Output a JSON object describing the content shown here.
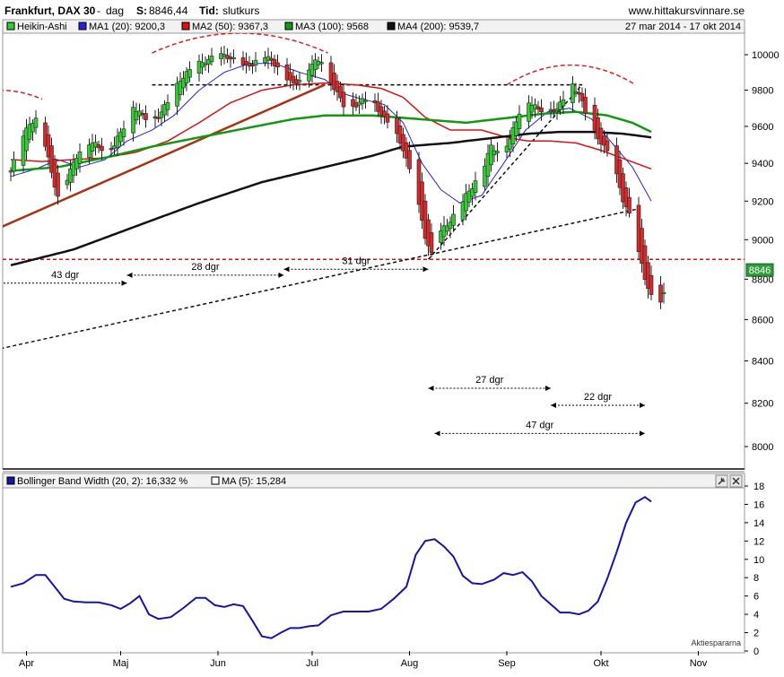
{
  "header": {
    "title": "Frankfurt, DAX 30",
    "sep": "-",
    "period": "dag",
    "price_label": "S:",
    "price": "8846,44",
    "time_label": "Tid:",
    "time_value": "slutkurs",
    "site": "www.hittakursvinnare.se",
    "date_range": "27 mar 2014 - 17 okt 2014"
  },
  "legend": [
    {
      "label": "Heikin-Ashi",
      "color": "#33cc33"
    },
    {
      "label": "MA1 (20): 9200,3",
      "color": "#2222dd"
    },
    {
      "label": "MA2 (50): 9367,3",
      "color": "#dd1111"
    },
    {
      "label": "MA3 (100): 9568",
      "color": "#119911"
    },
    {
      "label": "MA4 (200): 9539,7",
      "color": "#111111"
    }
  ],
  "lower_legend": {
    "bbw": "Bollinger Band Width (20, 2): 16,332  %",
    "bbw_color": "#1515aa",
    "ma": "MA (5): 15,284",
    "ma_color": "#ffffff"
  },
  "price_tag": "8846",
  "watermark": "Aktiespararna",
  "annotations": [
    {
      "text": "43 dgr",
      "x": 0,
      "x1": -13,
      "x2": 37,
      "y": 8780
    },
    {
      "text": "28 dgr",
      "x": 0,
      "x1": 37,
      "x2": 87,
      "y": 8820
    },
    {
      "text": "31 dgr",
      "x": 0,
      "x1": 87,
      "x2": 133,
      "y": 8850
    },
    {
      "text": "27 dgr",
      "x": 0,
      "x1": 133,
      "x2": 172,
      "y": 8270
    },
    {
      "text": "22 dgr",
      "x": 0,
      "x1": 172,
      "x2": 202,
      "y": 8190
    },
    {
      "text": "47 dgr",
      "x": 0,
      "x1": 135,
      "x2": 202,
      "y": 8060
    }
  ],
  "chart_data": [
    {
      "type": "candlestick",
      "candle_style": "Heikin-Ashi",
      "x_unit": "days since 2014-03-27",
      "x_ticks": [
        {
          "label": "Apr",
          "x": 5
        },
        {
          "label": "Maj",
          "x": 35
        },
        {
          "label": "Jun",
          "x": 66
        },
        {
          "label": "Jul",
          "x": 96
        },
        {
          "label": "Aug",
          "x": 127
        },
        {
          "label": "Sep",
          "x": 158
        },
        {
          "label": "Okt",
          "x": 188
        },
        {
          "label": "Nov",
          "x": 219
        }
      ],
      "ylim": [
        7880,
        10160
      ],
      "y_ticks": [
        8000,
        8200,
        8400,
        8600,
        8800,
        9000,
        9200,
        9400,
        9600,
        9800,
        10000
      ],
      "y_scale": "log",
      "grid": false,
      "anchors": [
        [
          0,
          9360
        ],
        [
          3,
          9500
        ],
        [
          6,
          9620
        ],
        [
          9,
          9640
        ],
        [
          12,
          9420
        ],
        [
          15,
          9220
        ],
        [
          18,
          9320
        ],
        [
          21,
          9440
        ],
        [
          24,
          9520
        ],
        [
          27,
          9500
        ],
        [
          30,
          9470
        ],
        [
          33,
          9500
        ],
        [
          36,
          9600
        ],
        [
          39,
          9710
        ],
        [
          42,
          9660
        ],
        [
          45,
          9620
        ],
        [
          48,
          9680
        ],
        [
          51,
          9760
        ],
        [
          54,
          9860
        ],
        [
          57,
          9910
        ],
        [
          60,
          9950
        ],
        [
          63,
          9970
        ],
        [
          66,
          10000
        ],
        [
          69,
          9990
        ],
        [
          72,
          9960
        ],
        [
          75,
          9930
        ],
        [
          78,
          9960
        ],
        [
          81,
          9990
        ],
        [
          84,
          9950
        ],
        [
          87,
          9890
        ],
        [
          90,
          9830
        ],
        [
          93,
          9880
        ],
        [
          96,
          9950
        ],
        [
          99,
          9970
        ],
        [
          101,
          9880
        ],
        [
          104,
          9780
        ],
        [
          107,
          9690
        ],
        [
          110,
          9720
        ],
        [
          113,
          9750
        ],
        [
          116,
          9720
        ],
        [
          119,
          9640
        ],
        [
          122,
          9580
        ],
        [
          125,
          9480
        ],
        [
          128,
          9300
        ],
        [
          130,
          9170
        ],
        [
          132,
          9020
        ],
        [
          134,
          8920
        ],
        [
          136,
          9020
        ],
        [
          139,
          9080
        ],
        [
          141,
          9120
        ],
        [
          144,
          9200
        ],
        [
          147,
          9280
        ],
        [
          150,
          9350
        ],
        [
          153,
          9490
        ],
        [
          156,
          9460
        ],
        [
          159,
          9530
        ],
        [
          162,
          9680
        ],
        [
          165,
          9740
        ],
        [
          168,
          9690
        ],
        [
          171,
          9700
        ],
        [
          174,
          9690
        ],
        [
          177,
          9790
        ],
        [
          179,
          9830
        ],
        [
          181,
          9780
        ],
        [
          184,
          9620
        ],
        [
          187,
          9540
        ],
        [
          190,
          9460
        ],
        [
          193,
          9330
        ],
        [
          195,
          9210
        ],
        [
          198,
          9080
        ],
        [
          200,
          8930
        ],
        [
          202,
          8810
        ],
        [
          204,
          8710
        ],
        [
          206,
          8650
        ],
        [
          208,
          8720
        ]
      ],
      "series": [
        {
          "name": "MA1 (20)",
          "anchors": [
            [
              0,
              9330
            ],
            [
              8,
              9370
            ],
            [
              15,
              9420
            ],
            [
              22,
              9380
            ],
            [
              30,
              9420
            ],
            [
              37,
              9520
            ],
            [
              45,
              9580
            ],
            [
              52,
              9660
            ],
            [
              60,
              9800
            ],
            [
              68,
              9900
            ],
            [
              76,
              9950
            ],
            [
              84,
              9950
            ],
            [
              92,
              9900
            ],
            [
              100,
              9860
            ],
            [
              106,
              9780
            ],
            [
              112,
              9750
            ],
            [
              119,
              9720
            ],
            [
              125,
              9620
            ],
            [
              131,
              9400
            ],
            [
              137,
              9260
            ],
            [
              143,
              9190
            ],
            [
              150,
              9230
            ],
            [
              157,
              9400
            ],
            [
              164,
              9580
            ],
            [
              171,
              9680
            ],
            [
              178,
              9700
            ],
            [
              185,
              9640
            ],
            [
              192,
              9500
            ],
            [
              198,
              9380
            ],
            [
              204,
              9200
            ]
          ]
        },
        {
          "name": "MA2 (50)",
          "anchors": [
            [
              0,
              9420
            ],
            [
              10,
              9410
            ],
            [
              20,
              9420
            ],
            [
              30,
              9430
            ],
            [
              40,
              9460
            ],
            [
              50,
              9520
            ],
            [
              60,
              9620
            ],
            [
              70,
              9730
            ],
            [
              80,
              9800
            ],
            [
              90,
              9830
            ],
            [
              100,
              9840
            ],
            [
              110,
              9830
            ],
            [
              118,
              9810
            ],
            [
              125,
              9760
            ],
            [
              132,
              9650
            ],
            [
              140,
              9580
            ],
            [
              150,
              9580
            ],
            [
              158,
              9540
            ],
            [
              165,
              9520
            ],
            [
              172,
              9520
            ],
            [
              180,
              9510
            ],
            [
              188,
              9470
            ],
            [
              196,
              9420
            ],
            [
              204,
              9370
            ]
          ]
        },
        {
          "name": "MA3 (100)",
          "anchors": [
            [
              0,
              9360
            ],
            [
              15,
              9380
            ],
            [
              30,
              9430
            ],
            [
              45,
              9490
            ],
            [
              60,
              9540
            ],
            [
              75,
              9590
            ],
            [
              90,
              9640
            ],
            [
              100,
              9660
            ],
            [
              115,
              9660
            ],
            [
              130,
              9640
            ],
            [
              145,
              9620
            ],
            [
              160,
              9650
            ],
            [
              170,
              9670
            ],
            [
              180,
              9680
            ],
            [
              190,
              9660
            ],
            [
              198,
              9620
            ],
            [
              204,
              9570
            ]
          ]
        },
        {
          "name": "MA4 (200)",
          "anchors": [
            [
              0,
              8870
            ],
            [
              20,
              8950
            ],
            [
              40,
              9070
            ],
            [
              60,
              9190
            ],
            [
              80,
              9300
            ],
            [
              100,
              9380
            ],
            [
              115,
              9440
            ],
            [
              125,
              9490
            ],
            [
              140,
              9510
            ],
            [
              155,
              9540
            ],
            [
              165,
              9560
            ],
            [
              175,
              9570
            ],
            [
              185,
              9570
            ],
            [
              195,
              9560
            ],
            [
              204,
              9540
            ]
          ]
        }
      ],
      "levels": [
        9830,
        8900
      ],
      "trendlines": [
        {
          "from": [
            -15,
            8980
          ],
          "to": [
            100,
            9830
          ],
          "color": "#aa3311"
        },
        {
          "from": [
            -15,
            8420
          ],
          "to": [
            200,
            9160
          ],
          "color": "#111111"
        },
        {
          "from": [
            133,
            8900
          ],
          "to": [
            182,
            9830
          ],
          "color": "#111111"
        }
      ],
      "arcs": [
        [
          -17,
          10
        ],
        [
          45,
          101
        ],
        [
          158,
          199
        ]
      ]
    },
    {
      "type": "line",
      "title": "Bollinger Band Width (20, 2)",
      "ylim": [
        0,
        18.8
      ],
      "y_ticks": [
        0,
        2,
        4,
        6,
        8,
        10,
        12,
        14,
        16,
        18
      ],
      "series": [
        {
          "name": "BBW",
          "values": [
            [
              0,
              7
            ],
            [
              4,
              7.4
            ],
            [
              8,
              8.3
            ],
            [
              11,
              8.3
            ],
            [
              14,
              7
            ],
            [
              17,
              5.7
            ],
            [
              20,
              5.4
            ],
            [
              24,
              5.3
            ],
            [
              28,
              5.3
            ],
            [
              32,
              5
            ],
            [
              35,
              4.6
            ],
            [
              38,
              5.2
            ],
            [
              41,
              6
            ],
            [
              44,
              4
            ],
            [
              47,
              3.5
            ],
            [
              51,
              3.7
            ],
            [
              55,
              4.7
            ],
            [
              59,
              5.8
            ],
            [
              62,
              5.8
            ],
            [
              65,
              5
            ],
            [
              68,
              4.8
            ],
            [
              71,
              5.1
            ],
            [
              74,
              4.9
            ],
            [
              77,
              3.3
            ],
            [
              80,
              1.6
            ],
            [
              83,
              1.4
            ],
            [
              86,
              2
            ],
            [
              89,
              2.5
            ],
            [
              92,
              2.5
            ],
            [
              95,
              2.7
            ],
            [
              98,
              2.8
            ],
            [
              102,
              3.9
            ],
            [
              106,
              4.3
            ],
            [
              110,
              4.3
            ],
            [
              114,
              4.3
            ],
            [
              118,
              4.6
            ],
            [
              122,
              5.7
            ],
            [
              126,
              7
            ],
            [
              129,
              10.5
            ],
            [
              132,
              12
            ],
            [
              135,
              12.2
            ],
            [
              138,
              11.4
            ],
            [
              141,
              10.3
            ],
            [
              144,
              8.2
            ],
            [
              147,
              7.4
            ],
            [
              150,
              7.3
            ],
            [
              154,
              7.8
            ],
            [
              157,
              8.5
            ],
            [
              160,
              8.3
            ],
            [
              163,
              8.6
            ],
            [
              166,
              7.6
            ],
            [
              169,
              6
            ],
            [
              172,
              5.1
            ],
            [
              175,
              4.2
            ],
            [
              178,
              4.2
            ],
            [
              181,
              4
            ],
            [
              184,
              4.4
            ],
            [
              187,
              5.4
            ],
            [
              190,
              7.9
            ],
            [
              193,
              10.8
            ],
            [
              196,
              14
            ],
            [
              199,
              16.2
            ],
            [
              202,
              16.8
            ],
            [
              204,
              16.3
            ]
          ]
        }
      ]
    }
  ]
}
